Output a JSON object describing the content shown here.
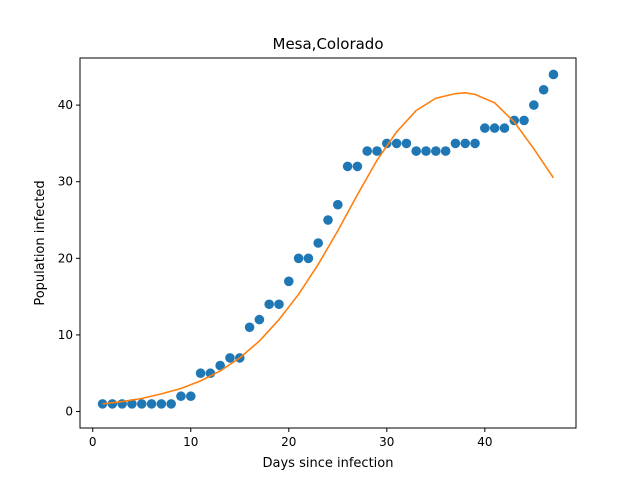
{
  "chart_data": {
    "type": "scatter",
    "title": "Mesa,Colorado",
    "xlabel": "Days since infection",
    "ylabel": "Population infected",
    "xlim": [
      -1.3,
      49.3
    ],
    "ylim": [
      -2.15,
      46.15
    ],
    "xticks": [
      0,
      10,
      20,
      30,
      40
    ],
    "yticks": [
      0,
      10,
      20,
      30,
      40
    ],
    "grid": false,
    "series": [
      {
        "kind": "scatter",
        "color": "#1f77b4",
        "x": [
          1,
          2,
          3,
          4,
          5,
          6,
          7,
          8,
          9,
          10,
          11,
          12,
          13,
          14,
          15,
          16,
          17,
          18,
          19,
          20,
          21,
          22,
          23,
          24,
          25,
          26,
          27,
          28,
          29,
          30,
          31,
          32,
          33,
          34,
          35,
          36,
          37,
          38,
          39,
          40,
          41,
          42,
          43,
          44,
          45,
          46,
          47
        ],
        "y": [
          1,
          1,
          1,
          1,
          1,
          1,
          1,
          1,
          2,
          2,
          5,
          5,
          6,
          7,
          7,
          11,
          12,
          14,
          14,
          17,
          20,
          20,
          22,
          25,
          27,
          32,
          32,
          34,
          34,
          35,
          35,
          35,
          34,
          34,
          34,
          34,
          35,
          35,
          35,
          37,
          37,
          37,
          38,
          38,
          40,
          42,
          44
        ]
      },
      {
        "kind": "line",
        "color": "#ff7f0e",
        "x": [
          1,
          3,
          5,
          7,
          9,
          11,
          13,
          15,
          17,
          19,
          21,
          23,
          25,
          27,
          29,
          31,
          33,
          35,
          37,
          38,
          39,
          41,
          43,
          45,
          47
        ],
        "y": [
          1.0,
          1.3,
          1.7,
          2.3,
          3.0,
          4.0,
          5.3,
          7.0,
          9.2,
          12.0,
          15.3,
          19.2,
          23.6,
          28.3,
          32.8,
          36.5,
          39.3,
          40.9,
          41.5,
          41.6,
          41.4,
          40.3,
          37.8,
          34.3,
          30.5
        ]
      }
    ]
  }
}
